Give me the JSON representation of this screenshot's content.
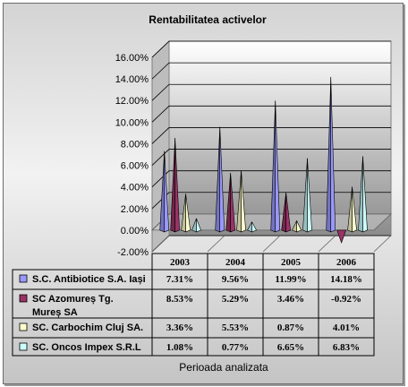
{
  "chart_data": {
    "type": "bar",
    "title": "Rentabilitatea activelor",
    "xlabel": "Perioada analizata",
    "ylabel": "",
    "categories": [
      "2003",
      "2004",
      "2005",
      "2006"
    ],
    "ylim": [
      -2,
      16
    ],
    "yticks": [
      "-2.00%",
      "0.00%",
      "2.00%",
      "4.00%",
      "6.00%",
      "8.00%",
      "10.00%",
      "12.00%",
      "14.00%",
      "16.00%"
    ],
    "grid": true,
    "legend_placement": "data-table",
    "series": [
      {
        "name_lines": [
          "S.C. Antibiotice S.A. Iași"
        ],
        "color": "#9999ff",
        "values": [
          7.31,
          9.56,
          11.99,
          14.18
        ],
        "labels": [
          "7.31%",
          "9.56%",
          "11.99%",
          "14.18%"
        ]
      },
      {
        "name_lines": [
          "SC Azomureș Tg.",
          "Mureș SA"
        ],
        "color": "#993366",
        "values": [
          8.53,
          5.29,
          3.46,
          -0.92
        ],
        "labels": [
          "8.53%",
          "5.29%",
          "3.46%",
          "-0.92%"
        ]
      },
      {
        "name_lines": [
          "SC. Carbochim Cluj SA."
        ],
        "color": "#ffffcc",
        "values": [
          3.36,
          5.53,
          0.87,
          4.01
        ],
        "labels": [
          "3.36%",
          "5.53%",
          "0.87%",
          "4.01%"
        ]
      },
      {
        "name_lines": [
          "SC. Oncos Impex S.R.L"
        ],
        "color": "#ccffff",
        "values": [
          1.08,
          0.77,
          6.65,
          6.83
        ],
        "labels": [
          "1.08%",
          "0.77%",
          "6.65%",
          "6.83%"
        ]
      }
    ]
  }
}
